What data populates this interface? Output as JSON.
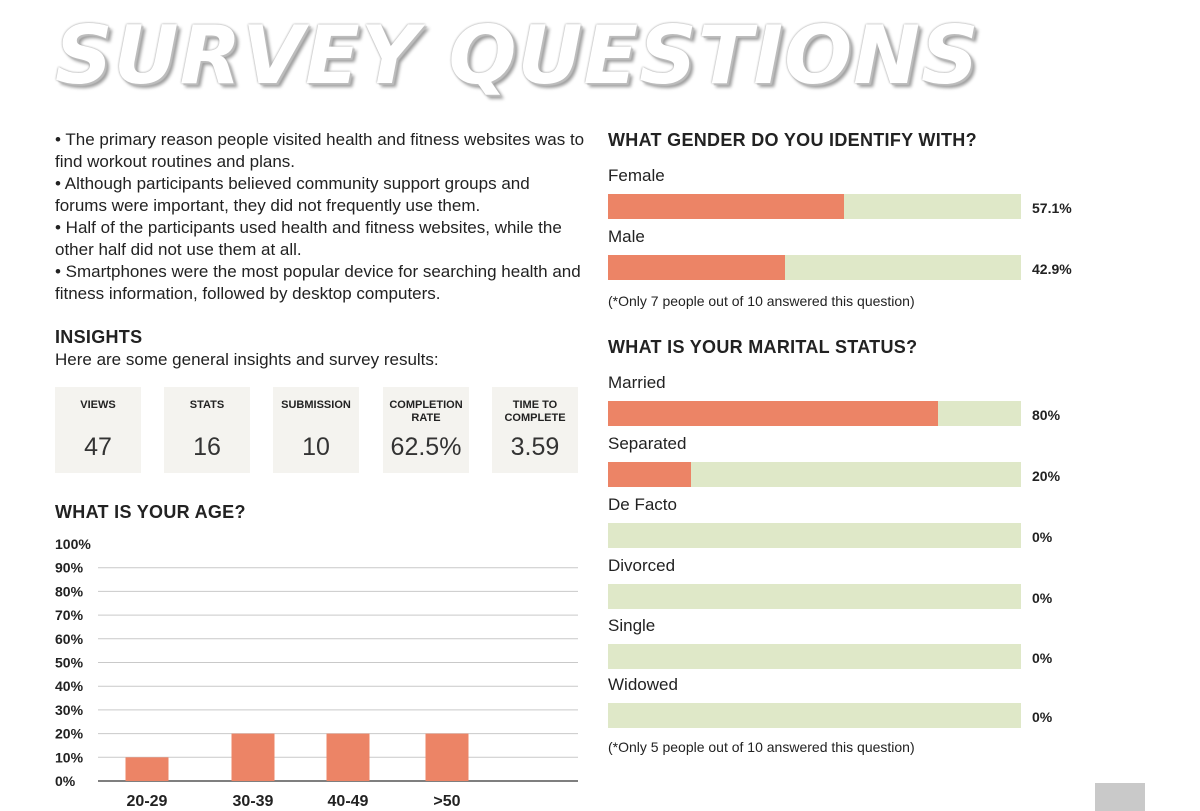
{
  "title": "SURVEY QUESTIONS",
  "summary": [
    "• The primary reason people visited health and fitness websites was to find workout routines and plans.",
    "• Although participants believed community support groups and forums were important, they did not frequently use them.",
    "• Half of the participants used health and fitness websites, while the other half did not use them at all.",
    "• Smartphones were the most popular device for searching health and fitness information, followed by desktop computers."
  ],
  "insights": {
    "heading": "INSIGHTS",
    "subtext": "Here are some general insights and survey results:",
    "stats": [
      {
        "label": "VIEWS",
        "value": "47"
      },
      {
        "label": "STATS",
        "value": "16"
      },
      {
        "label": "SUBMISSION",
        "value": "10"
      },
      {
        "label": "COMPLETION RATE",
        "value": "62.5%"
      },
      {
        "label": "TIME TO COMPLETE",
        "value": "3.59"
      }
    ]
  },
  "age": {
    "heading": "WHAT IS YOUR AGE?"
  },
  "gender": {
    "heading": "WHAT GENDER DO YOU IDENTIFY WITH?",
    "options": [
      {
        "label": "Female",
        "pct": "57.1%",
        "value": 57.1
      },
      {
        "label": "Male",
        "pct": "42.9%",
        "value": 42.9
      }
    ],
    "note": "(*Only 7 people out of 10 answered this question)"
  },
  "marital": {
    "heading": "WHAT IS YOUR MARITAL STATUS?",
    "options": [
      {
        "label": "Married",
        "pct": "80%",
        "value": 80
      },
      {
        "label": "Separated",
        "pct": "20%",
        "value": 20
      },
      {
        "label": "De Facto",
        "pct": "0%",
        "value": 0
      },
      {
        "label": "Divorced",
        "pct": "0%",
        "value": 0
      },
      {
        "label": "Single",
        "pct": "0%",
        "value": 0
      },
      {
        "label": "Widowed",
        "pct": "0%",
        "value": 0
      }
    ],
    "note": "(*Only 5 people out of 10 answered this question)"
  },
  "colors": {
    "bar_fill": "#ec8466",
    "bar_track": "#dfe8c8",
    "stat_box": "#f4f3ef"
  },
  "chart_data": [
    {
      "type": "bar",
      "title": "WHAT IS YOUR AGE?",
      "categories": [
        "20-29",
        "30-39",
        "40-49",
        ">50"
      ],
      "values": [
        10,
        20,
        20,
        20
      ],
      "ylim": [
        0,
        100
      ],
      "y_ticks": [
        "0%",
        "10%",
        "20%",
        "30%",
        "40%",
        "50%",
        "60%",
        "70%",
        "80%",
        "90%",
        "100%"
      ],
      "grid": true
    },
    {
      "type": "bar",
      "orientation": "horizontal",
      "title": "WHAT GENDER DO YOU IDENTIFY WITH?",
      "categories": [
        "Female",
        "Male"
      ],
      "values": [
        57.1,
        42.9
      ],
      "xlim": [
        0,
        100
      ]
    },
    {
      "type": "bar",
      "orientation": "horizontal",
      "title": "WHAT IS YOUR MARITAL STATUS?",
      "categories": [
        "Married",
        "Separated",
        "De Facto",
        "Divorced",
        "Single",
        "Widowed"
      ],
      "values": [
        80,
        20,
        0,
        0,
        0,
        0
      ],
      "xlim": [
        0,
        100
      ]
    }
  ]
}
